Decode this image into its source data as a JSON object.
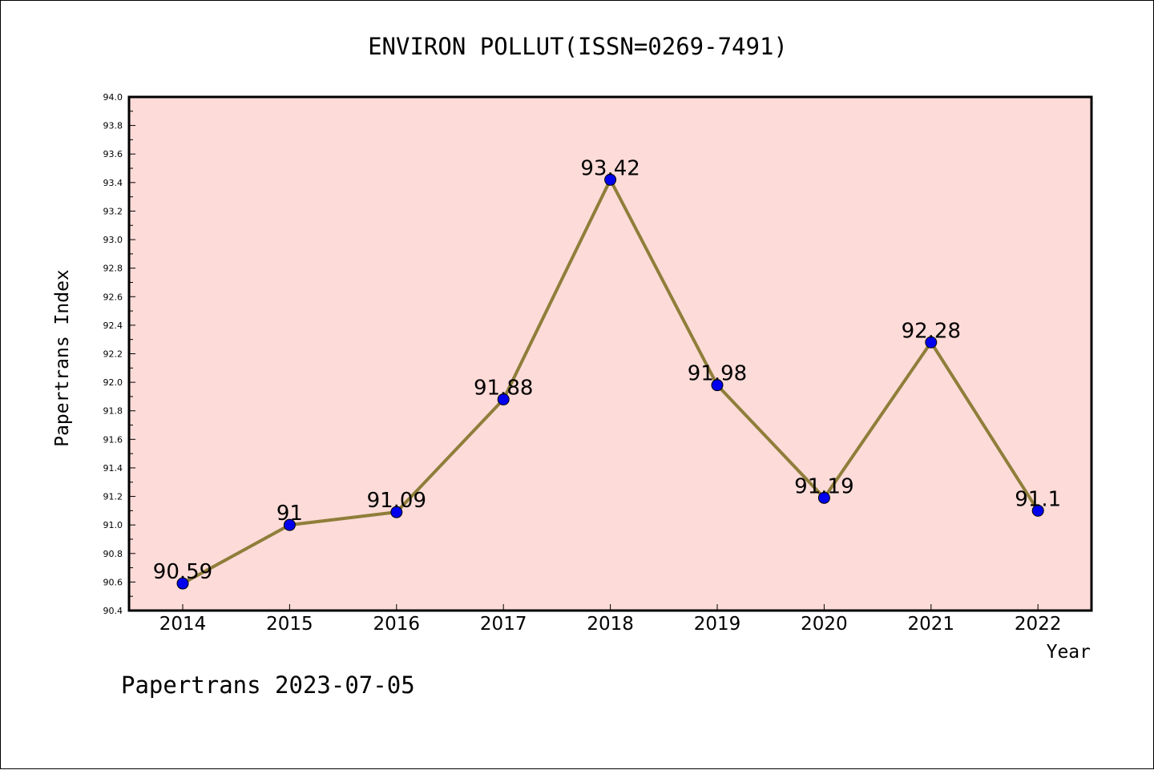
{
  "colors": {
    "plot_background": "#fddbd8",
    "line": "#8f7e3a",
    "marker": "#0000ee",
    "marker_edge": "#000000",
    "frame": "#000000"
  },
  "chart_data": {
    "type": "line",
    "title": "ENVIRON POLLUT(ISSN=0269-7491)",
    "xlabel": "Year",
    "ylabel": "Papertrans Index",
    "categories": [
      "2014",
      "2015",
      "2016",
      "2017",
      "2018",
      "2019",
      "2020",
      "2021",
      "2022"
    ],
    "series": [
      {
        "values": [
          90.59,
          91,
          91.09,
          91.88,
          93.42,
          91.98,
          91.19,
          92.28,
          91.1
        ],
        "labels": [
          "90.59",
          "91",
          "91.09",
          "91.88",
          "93.42",
          "91.98",
          "91.19",
          "92.28",
          "91.1"
        ]
      }
    ],
    "ylim": [
      90.4,
      94.0
    ],
    "yticks": [
      "90.4",
      "90.6",
      "90.8",
      "91.0",
      "91.2",
      "91.4",
      "91.6",
      "91.8",
      "92.0",
      "92.2",
      "92.4",
      "92.6",
      "92.8",
      "93.0",
      "93.2",
      "93.4",
      "93.6",
      "93.8",
      "94.0"
    ],
    "grid": false,
    "legend": "none"
  },
  "footer": {
    "text": "Papertrans 2023-07-05"
  }
}
